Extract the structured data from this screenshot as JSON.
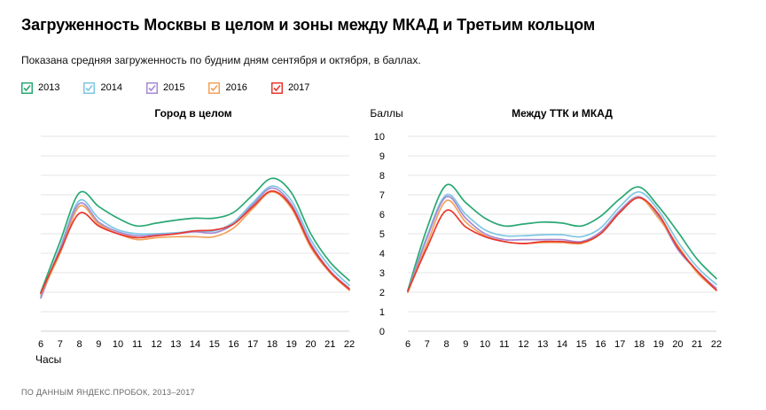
{
  "header": {
    "title": "Загруженность Москвы в целом и зоны между МКАД и Третьим кольцом",
    "subtitle": "Показана средняя загруженность по будним дням сентября и октября, в баллах."
  },
  "legend": [
    {
      "label": "2013",
      "color": "#2aa873"
    },
    {
      "label": "2014",
      "color": "#7ec6e4"
    },
    {
      "label": "2015",
      "color": "#a68ad1"
    },
    {
      "label": "2016",
      "color": "#f0a35a"
    },
    {
      "label": "2017",
      "color": "#e8382f"
    }
  ],
  "footer": {
    "source": "ПО ДАННЫМ ЯНДЕКС.ПРОБОК, 2013–2017"
  },
  "chart_data": [
    {
      "type": "line",
      "title": "Город в целом",
      "xlabel": "Часы",
      "ylabel": "",
      "x": [
        6,
        7,
        8,
        9,
        10,
        11,
        12,
        13,
        14,
        15,
        16,
        17,
        18,
        19,
        20,
        21,
        22
      ],
      "ylim": [
        0,
        10
      ],
      "grid": true,
      "series": [
        {
          "name": "2013",
          "color": "#2aa873",
          "values": [
            2.0,
            4.6,
            7.1,
            6.4,
            5.8,
            5.4,
            5.55,
            5.7,
            5.8,
            5.8,
            6.1,
            7.0,
            7.85,
            7.1,
            5.0,
            3.55,
            2.6
          ]
        },
        {
          "name": "2014",
          "color": "#7ec6e4",
          "values": [
            1.8,
            4.3,
            6.7,
            5.8,
            5.2,
            5.0,
            5.0,
            5.05,
            5.15,
            5.15,
            5.6,
            6.6,
            7.45,
            6.7,
            4.7,
            3.3,
            2.35
          ]
        },
        {
          "name": "2015",
          "color": "#a68ad1",
          "values": [
            1.7,
            4.2,
            6.55,
            5.6,
            5.1,
            4.9,
            4.95,
            5.0,
            5.1,
            5.05,
            5.5,
            6.5,
            7.35,
            6.5,
            4.5,
            3.1,
            2.2
          ]
        },
        {
          "name": "2016",
          "color": "#f0a35a",
          "values": [
            1.9,
            4.0,
            6.4,
            5.5,
            5.0,
            4.7,
            4.8,
            4.85,
            4.85,
            4.85,
            5.3,
            6.3,
            7.15,
            6.3,
            4.3,
            3.0,
            2.1
          ]
        },
        {
          "name": "2017",
          "color": "#e8382f",
          "values": [
            1.95,
            4.1,
            6.05,
            5.4,
            5.0,
            4.8,
            4.9,
            5.0,
            5.15,
            5.2,
            5.5,
            6.4,
            7.2,
            6.4,
            4.4,
            3.05,
            2.15
          ]
        }
      ]
    },
    {
      "type": "line",
      "title": "Между ТТК и МКАД",
      "xlabel": "",
      "ylabel": "Баллы",
      "x": [
        6,
        7,
        8,
        9,
        10,
        11,
        12,
        13,
        14,
        15,
        16,
        17,
        18,
        19,
        20,
        21,
        22
      ],
      "ylim": [
        0,
        10
      ],
      "yticks": [
        0,
        1,
        2,
        3,
        4,
        5,
        6,
        7,
        8,
        9,
        10
      ],
      "grid": true,
      "series": [
        {
          "name": "2013",
          "color": "#2aa873",
          "values": [
            2.1,
            5.3,
            7.5,
            6.6,
            5.8,
            5.4,
            5.5,
            5.6,
            5.55,
            5.4,
            5.9,
            6.8,
            7.4,
            6.4,
            5.1,
            3.7,
            2.7
          ]
        },
        {
          "name": "2014",
          "color": "#7ec6e4",
          "values": [
            2.0,
            4.9,
            7.0,
            6.0,
            5.2,
            4.9,
            4.9,
            4.95,
            4.95,
            4.85,
            5.3,
            6.4,
            7.15,
            6.2,
            4.6,
            3.3,
            2.4
          ]
        },
        {
          "name": "2015",
          "color": "#a68ad1",
          "values": [
            2.0,
            4.8,
            6.9,
            5.8,
            5.0,
            4.7,
            4.7,
            4.7,
            4.7,
            4.6,
            5.1,
            6.2,
            6.9,
            5.9,
            4.2,
            3.1,
            2.2
          ]
        },
        {
          "name": "2016",
          "color": "#f0a35a",
          "values": [
            2.0,
            4.5,
            6.7,
            5.6,
            4.9,
            4.6,
            4.5,
            4.55,
            4.55,
            4.5,
            5.0,
            6.1,
            6.85,
            5.8,
            4.4,
            3.0,
            2.1
          ]
        },
        {
          "name": "2017",
          "color": "#e8382f",
          "values": [
            2.05,
            4.3,
            6.2,
            5.35,
            4.85,
            4.6,
            4.5,
            4.6,
            4.6,
            4.55,
            5.0,
            6.1,
            6.85,
            6.0,
            4.3,
            3.1,
            2.1
          ]
        }
      ]
    }
  ]
}
